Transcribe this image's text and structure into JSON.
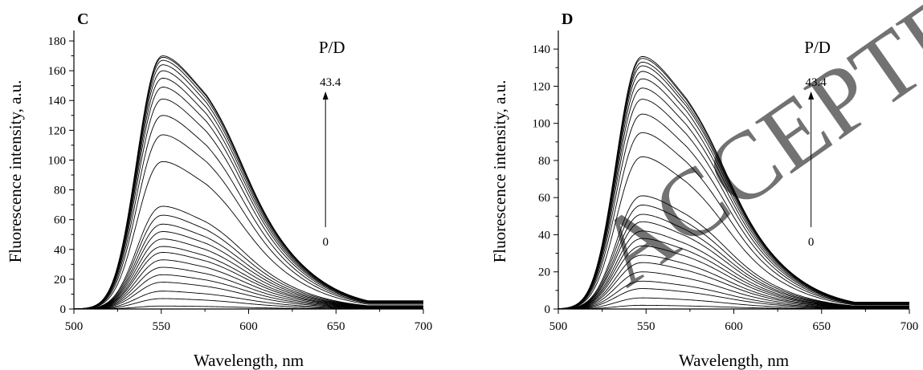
{
  "watermark": "ACCEPTED MANUSCRIPT",
  "chart_data": [
    {
      "type": "line",
      "panel_label": "C",
      "xlabel": "Wavelength, nm",
      "ylabel": "Fluorescence intensity, a.u.",
      "xlim": [
        500,
        700
      ],
      "ylim": [
        0,
        187
      ],
      "x_ticks": [
        "500",
        "550",
        "600",
        "650",
        "700"
      ],
      "y_ticks": [
        "0",
        "20",
        "40",
        "60",
        "80",
        "100",
        "120",
        "140",
        "160",
        "180"
      ],
      "legend_title": "P/D",
      "arrow_top_label": "43.4",
      "arrow_bottom_label": "0",
      "peak_x": 551,
      "tail_ratio": 0.036,
      "series_peaks": [
        2,
        7,
        12,
        18,
        23,
        28,
        33,
        38,
        42,
        47,
        52,
        57,
        63,
        69,
        99,
        117,
        130,
        141,
        149,
        155,
        160,
        164,
        167,
        169,
        170
      ]
    },
    {
      "type": "line",
      "panel_label": "D",
      "xlabel": "Wavelength, nm",
      "ylabel": "Fluorescence intensity, a.u.",
      "xlim": [
        500,
        700
      ],
      "ylim": [
        0,
        150
      ],
      "x_ticks": [
        "500",
        "550",
        "600",
        "650",
        "700"
      ],
      "y_ticks": [
        "0",
        "20",
        "40",
        "60",
        "80",
        "100",
        "120",
        "140"
      ],
      "legend_title": "P/D",
      "arrow_top_label": "43.4",
      "arrow_bottom_label": "0",
      "peak_x": 548,
      "tail_ratio": 0.03,
      "series_peaks": [
        2,
        6,
        11,
        15,
        20,
        25,
        29,
        34,
        38,
        42,
        47,
        51,
        56,
        61,
        82,
        95,
        105,
        113,
        119,
        124,
        128,
        131,
        133,
        135,
        136
      ]
    }
  ]
}
